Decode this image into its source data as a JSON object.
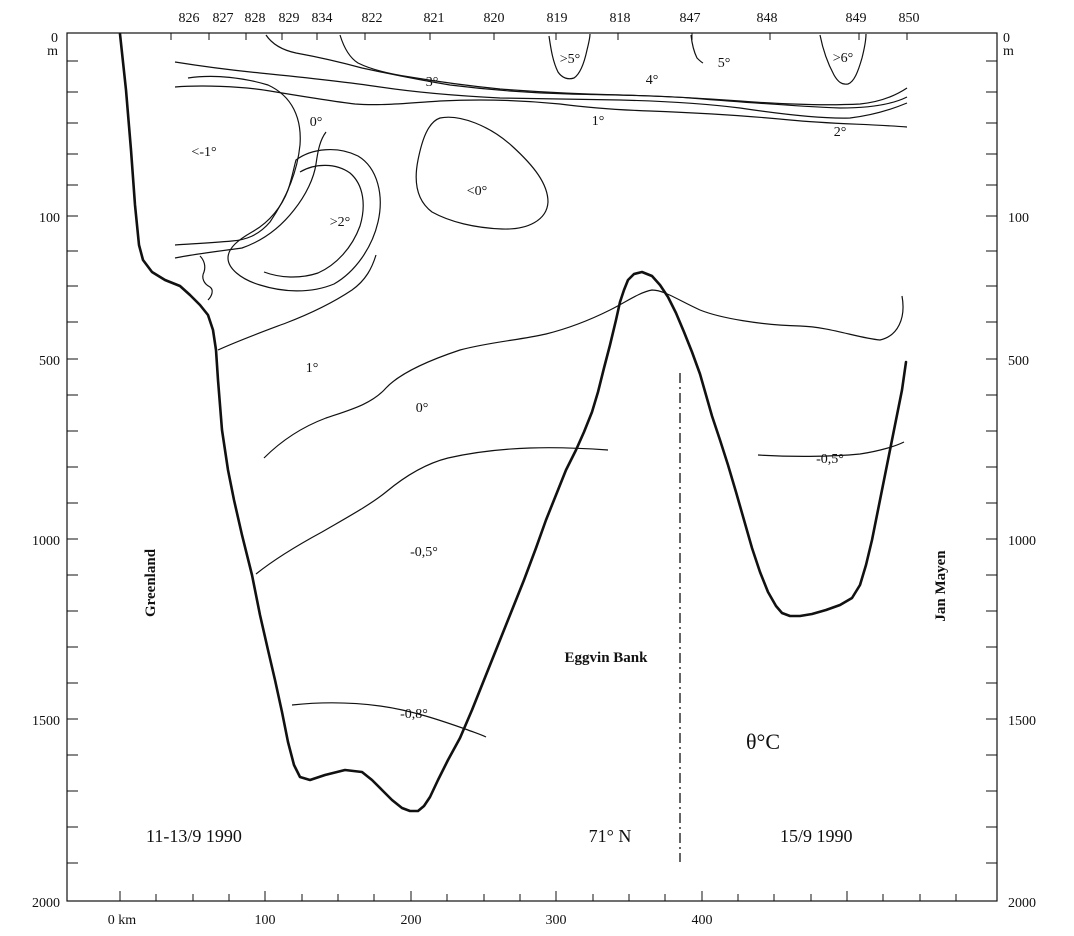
{
  "section": {
    "x_unit": "km",
    "x_zero_label": "0 km",
    "x_ticks": [
      "100",
      "200",
      "300",
      "400"
    ],
    "depth_top_label": "0",
    "depth_unit": "m",
    "depth_ticks_left": [
      "100",
      "500",
      "1000",
      "1500",
      "2000"
    ],
    "depth_ticks_right": [
      "100",
      "500",
      "1000",
      "1500",
      "2000"
    ],
    "stations": [
      "826",
      "827",
      "828",
      "829",
      "834",
      "822",
      "821",
      "820",
      "819",
      "818",
      "847",
      "848",
      "849",
      "850"
    ],
    "places": {
      "left": "Greenland",
      "right": "Jan Mayen",
      "bank": "Eggvin Bank"
    },
    "quantity": "θ°C",
    "dates": {
      "left": "11-13/9 1990",
      "right": "15/9 1990"
    },
    "latitude": "71° N",
    "isotherm_labels": {
      "warm6": ">6°",
      "warm5a": ">5°",
      "iso5": "5°",
      "iso4": "4°",
      "iso3": "3°",
      "iso2": "2°",
      "iso1_upper": "1°",
      "iso0_upper": "0°",
      "cold_minus1": "<-1°",
      "warm_gt2": ">2°",
      "cold_lt0": "<0°",
      "iso1_lower": "1°",
      "iso0_mid": "0°",
      "iso_minus05_left": "-0,5°",
      "iso_minus05_right": "-0,5°",
      "iso_minus08": "-0,8°"
    }
  }
}
